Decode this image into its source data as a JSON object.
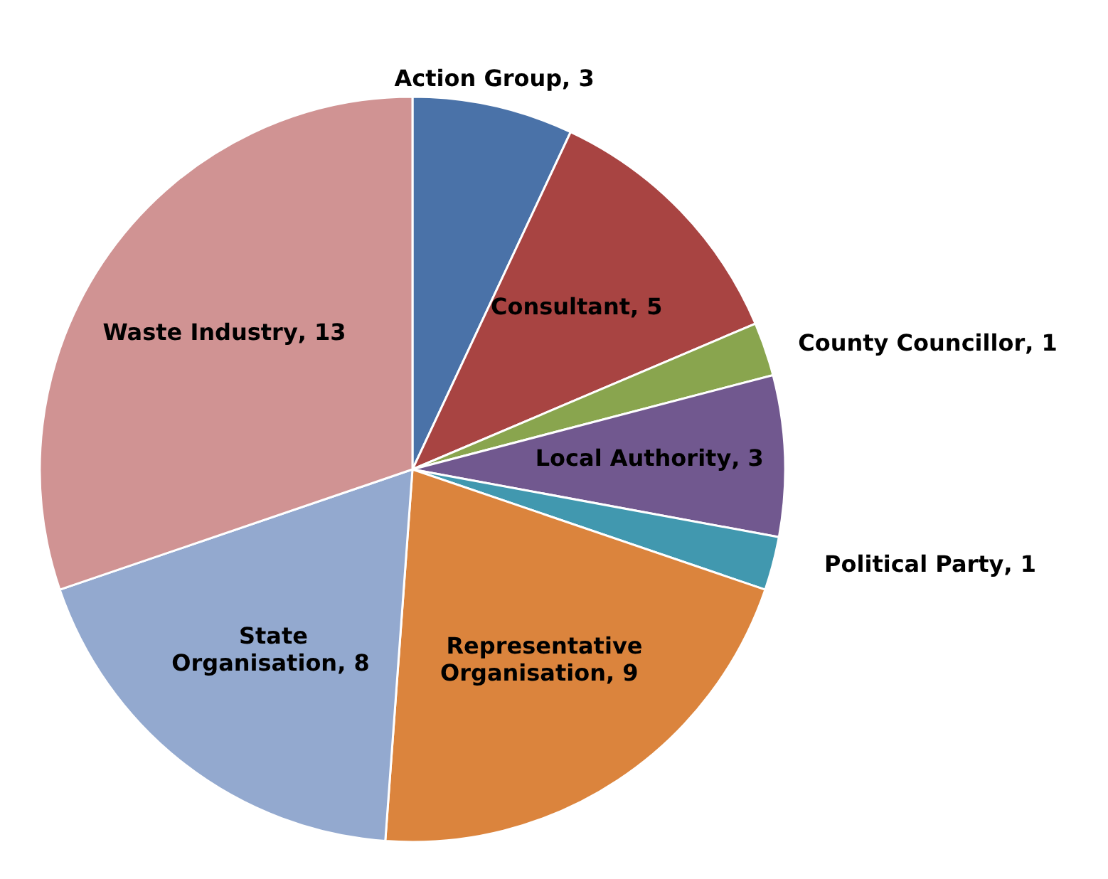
{
  "chart_data": {
    "type": "pie",
    "categories": [
      "Action Group",
      "Consultant",
      "County Councillor",
      "Local Authority",
      "Political Party",
      "Representative Organisation",
      "State Organisation",
      "Waste Industry"
    ],
    "values": [
      3,
      5,
      1,
      3,
      1,
      9,
      8,
      13
    ],
    "value_labels": [
      ", 3",
      ", 5",
      ", 1",
      ", 3",
      ", 1",
      ", 9",
      ", 8",
      ", 13"
    ],
    "colors": [
      "#4a72a8",
      "#a84442",
      "#89a54e",
      "#71588f",
      "#4198af",
      "#db843d",
      "#93a9cf",
      "#d09393"
    ]
  }
}
